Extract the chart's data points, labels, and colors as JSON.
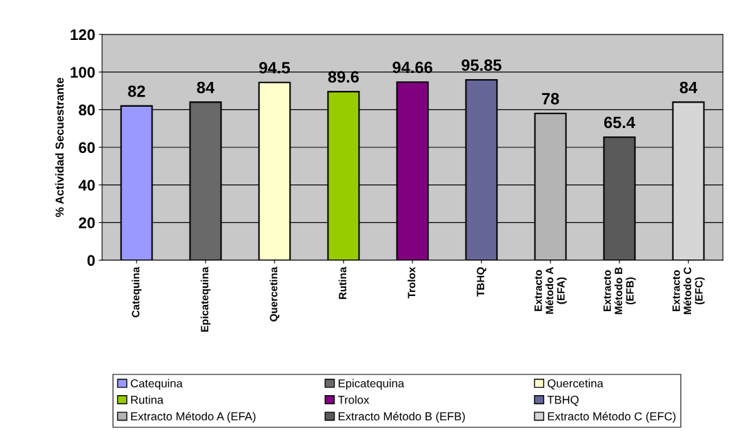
{
  "chart_data": {
    "type": "bar",
    "ylabel": "% Actividad Secuestrante",
    "categories": [
      "Catequina",
      "Epicatequina",
      "Quercetina",
      "Rutina",
      "Trolox",
      "TBHQ",
      "Extracto\nMétodo A\n(EFA)",
      "Extracto\nMétodo B\n(EFB)",
      "Extracto\nMétodo C\n(EFC)"
    ],
    "series": [
      {
        "name": "Catequina",
        "color": "#9999ff",
        "values": [
          82,
          null,
          null,
          null,
          null,
          null,
          null,
          null,
          null
        ]
      },
      {
        "name": "Epicatequina",
        "color": "#696969",
        "values": [
          null,
          84,
          null,
          null,
          null,
          null,
          null,
          null,
          null
        ]
      },
      {
        "name": "Quercetina",
        "color": "#ffffcc",
        "values": [
          null,
          null,
          94.5,
          null,
          null,
          null,
          null,
          null,
          null
        ]
      },
      {
        "name": "Rutina",
        "color": "#99cc00",
        "values": [
          null,
          null,
          null,
          89.6,
          null,
          null,
          null,
          null,
          null
        ]
      },
      {
        "name": "Trolox",
        "color": "#800080",
        "values": [
          null,
          null,
          null,
          null,
          94.66,
          null,
          null,
          null,
          null
        ]
      },
      {
        "name": "TBHQ",
        "color": "#666699",
        "values": [
          null,
          null,
          null,
          null,
          null,
          95.85,
          null,
          null,
          null
        ]
      },
      {
        "name": "Extracto Método A (EFA)",
        "color": "#b4b4b4",
        "values": [
          null,
          null,
          null,
          null,
          null,
          null,
          78,
          null,
          null
        ]
      },
      {
        "name": "Extracto Método B (EFB)",
        "color": "#5a5a5a",
        "values": [
          null,
          null,
          null,
          null,
          null,
          null,
          null,
          65.4,
          null
        ]
      },
      {
        "name": "Extracto Método C (EFC)",
        "color": "#d6d6d6",
        "values": [
          null,
          null,
          null,
          null,
          null,
          null,
          null,
          null,
          84
        ]
      }
    ],
    "ylim": [
      0,
      120
    ],
    "yticks": [
      0,
      20,
      40,
      60,
      80,
      100,
      120
    ],
    "grid": "y",
    "data_labels": true,
    "legend": "bottom"
  }
}
